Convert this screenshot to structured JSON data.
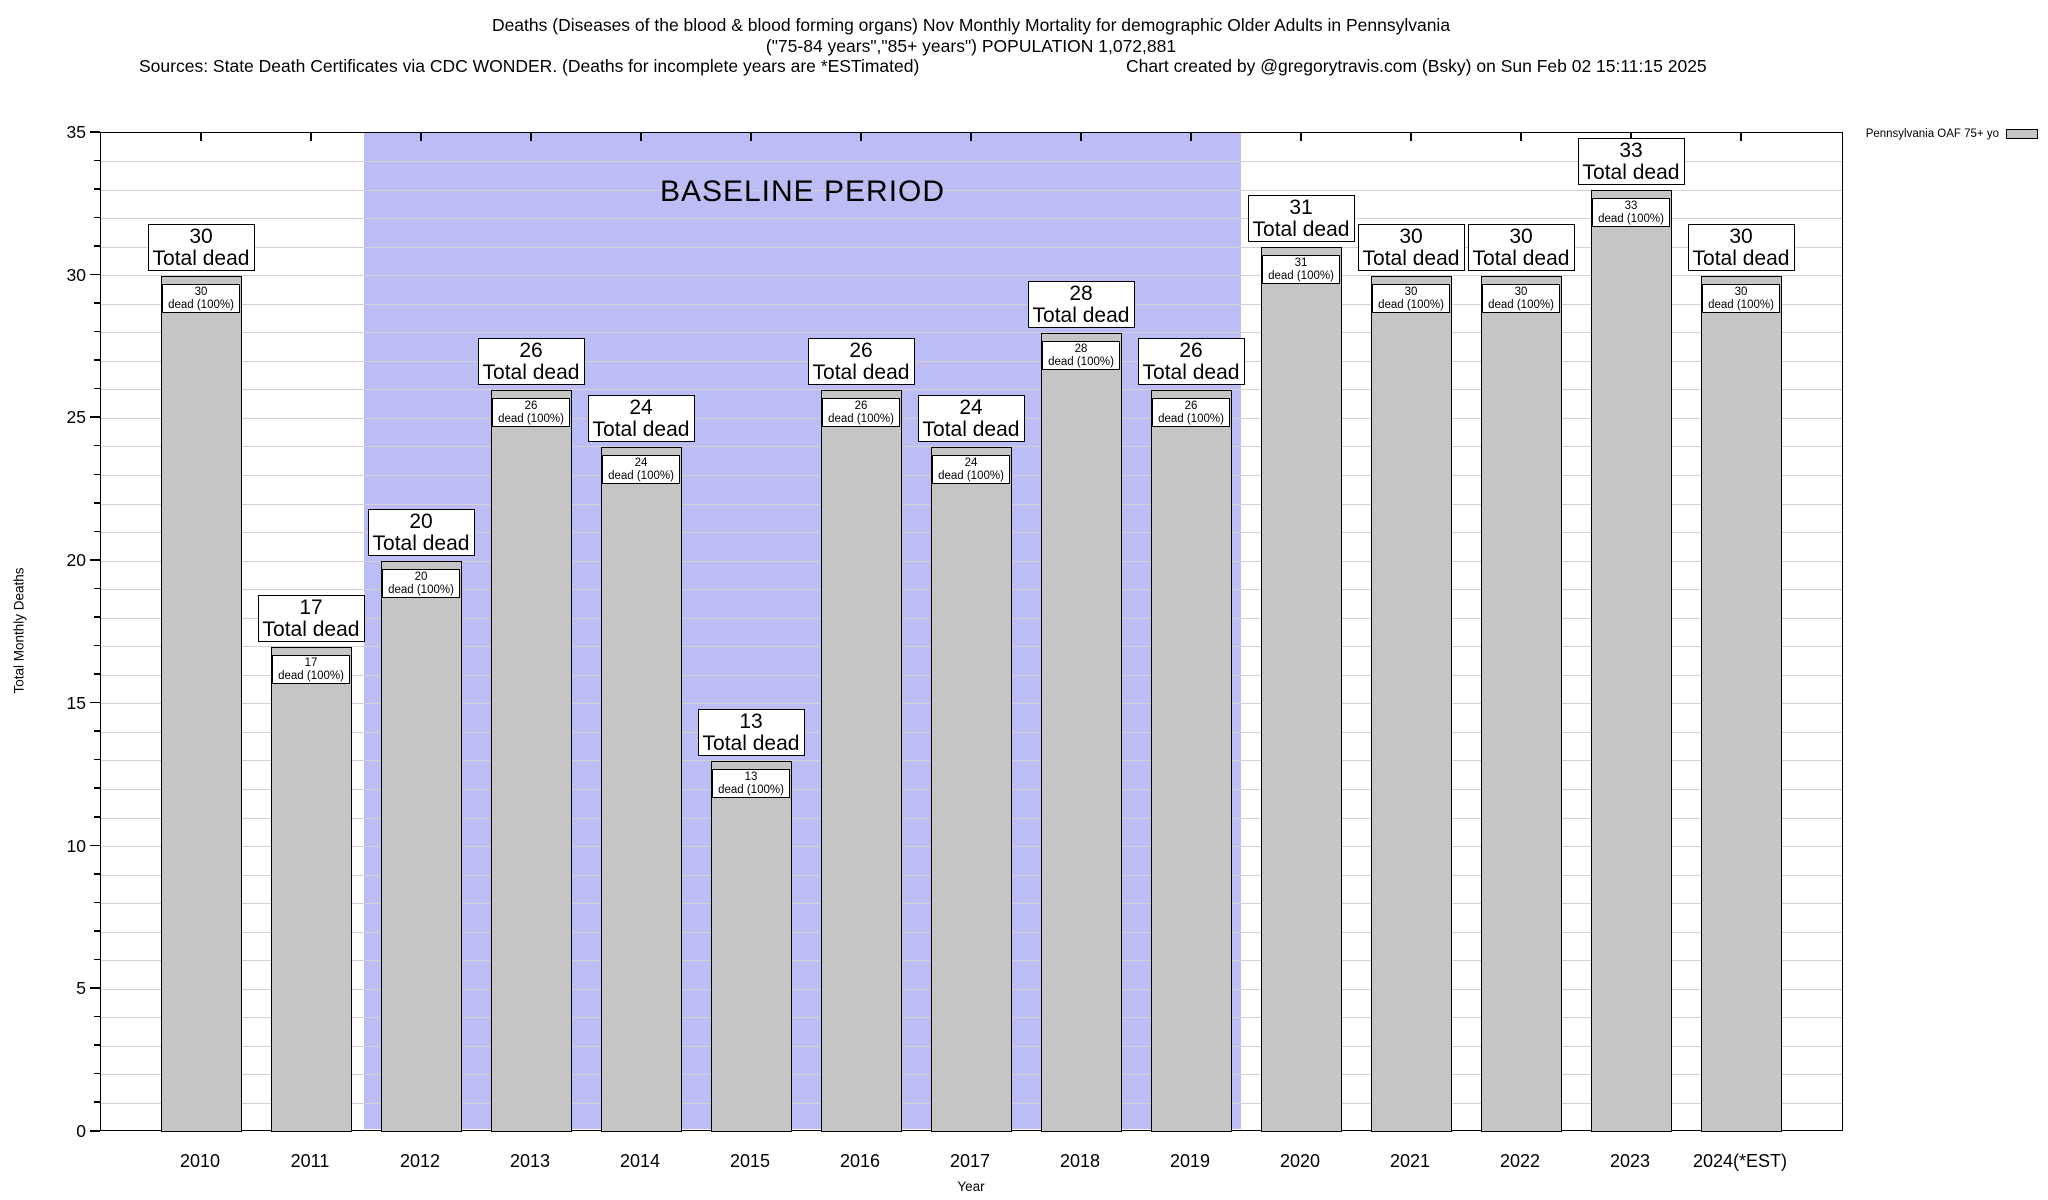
{
  "header": {
    "title_line1": "Deaths (Diseases of the blood & blood forming organs) Nov Monthly Mortality for demographic Older Adults in Pennsylvania",
    "title_line2": "(\"75-84 years\",\"85+ years\") POPULATION 1,072,881",
    "sources_note": "Sources: State Death Certificates via CDC WONDER. (Deaths for incomplete years are *ESTimated)",
    "credit": "Chart created by @gregorytravis.com (Bsky) on Sun Feb 02 15:11:15 2025"
  },
  "legend": {
    "label": "Pennsylvania OAF 75+ yo"
  },
  "labels": {
    "total_dead": "Total dead",
    "dead_pct": "dead (100%)"
  },
  "baseline": {
    "label": "BASELINE PERIOD",
    "start_category": "2012",
    "end_category": "2019"
  },
  "chart_data": {
    "type": "bar",
    "title": "Deaths (Diseases of the blood & blood forming organs) Nov Monthly Mortality for demographic Older Adults in Pennsylvania",
    "subtitle": "(\"75-84 years\",\"85+ years\") POPULATION 1,072,881",
    "categories": [
      "2010",
      "2011",
      "2012",
      "2013",
      "2014",
      "2015",
      "2016",
      "2017",
      "2018",
      "2019",
      "2020",
      "2021",
      "2022",
      "2023",
      "2024(*EST)"
    ],
    "values": [
      30,
      17,
      20,
      26,
      24,
      13,
      26,
      24,
      28,
      26,
      31,
      30,
      30,
      33,
      30
    ],
    "series_name": "Pennsylvania OAF 75+ yo",
    "xlabel": "Year",
    "ylabel": "Total Monthly Deaths",
    "ylim": [
      0,
      35
    ],
    "ytick_interval_major": 5,
    "ytick_interval_minor": 1,
    "grid": true,
    "legend_position": "outside-top-right",
    "annotations": [
      {
        "text": "BASELINE PERIOD",
        "span_categories": [
          "2012",
          "2019"
        ],
        "type": "shaded-region"
      }
    ],
    "bar_value_box_format": "{value} / dead (100%)",
    "bar_total_box_format": "{value} / Total dead",
    "colors": {
      "bar_fill": "#c5c5c5",
      "bar_border": "#000000",
      "baseline_region": "#bdbdf6",
      "gridline": "#d2d2d2",
      "background": "#ffffff",
      "text": "#000000"
    }
  }
}
